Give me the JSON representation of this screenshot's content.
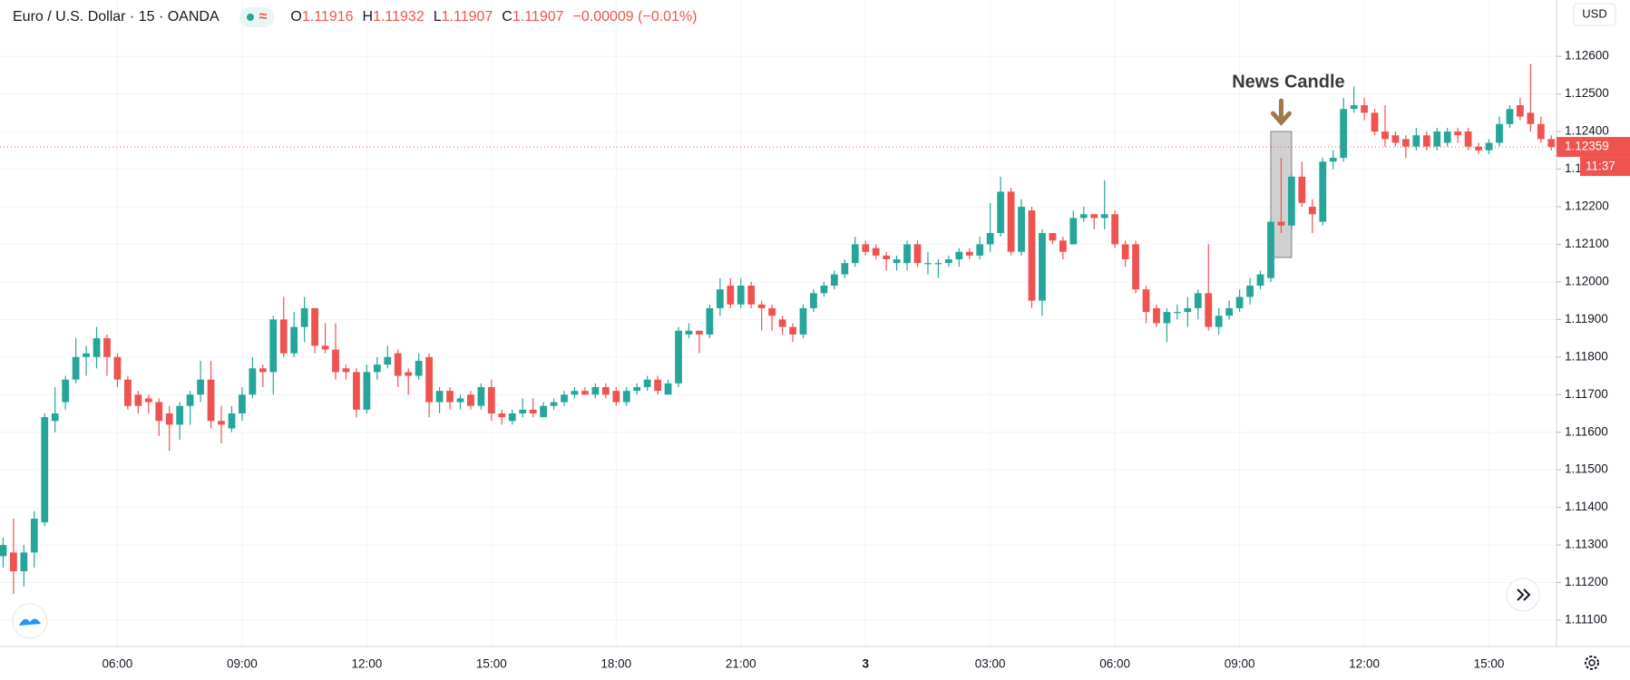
{
  "header": {
    "title": "Euro / U.S. Dollar · 15 · OANDA",
    "ohlc": [
      {
        "label": "O",
        "value": "1.11916"
      },
      {
        "label": "H",
        "value": "1.11932"
      },
      {
        "label": "L",
        "value": "1.11907"
      },
      {
        "label": "C",
        "value": "1.11907"
      }
    ],
    "change": "−0.00009 (−0.01%)"
  },
  "chart_data": {
    "type": "candlestick",
    "up_color": "#26a69a",
    "down_color": "#ef5350",
    "grid": true,
    "currency": "USD",
    "last_price_label": "1.12359",
    "countdown": "11:37",
    "annotations": [
      {
        "text": "News Candle",
        "x": 123
      }
    ],
    "highlight": {
      "x": 123,
      "ylim": [
        1.12065,
        1.124
      ]
    },
    "xlim": [
      -0.3,
      149.5
    ],
    "xticks": [
      {
        "value": 11,
        "label": "06:00"
      },
      {
        "value": 23,
        "label": "09:00"
      },
      {
        "value": 35,
        "label": "12:00"
      },
      {
        "value": 47,
        "label": "15:00"
      },
      {
        "value": 59,
        "label": "18:00"
      },
      {
        "value": 71,
        "label": "21:00"
      },
      {
        "value": 83,
        "label": "3"
      },
      {
        "value": 95,
        "label": "03:00"
      },
      {
        "value": 107,
        "label": "06:00"
      },
      {
        "value": 119,
        "label": "09:00"
      },
      {
        "value": 131,
        "label": "12:00"
      },
      {
        "value": 143,
        "label": "15:00"
      }
    ],
    "ylim": [
      1.1103,
      1.1275
    ],
    "yticks": [
      {
        "value": 1.111,
        "label": "1.11100"
      },
      {
        "value": 1.112,
        "label": "1.11200"
      },
      {
        "value": 1.113,
        "label": "1.11300"
      },
      {
        "value": 1.114,
        "label": "1.11400"
      },
      {
        "value": 1.115,
        "label": "1.11500"
      },
      {
        "value": 1.116,
        "label": "1.11600"
      },
      {
        "value": 1.117,
        "label": "1.11700"
      },
      {
        "value": 1.118,
        "label": "1.11800"
      },
      {
        "value": 1.119,
        "label": "1.11900"
      },
      {
        "value": 1.12,
        "label": "1.12000"
      },
      {
        "value": 1.121,
        "label": "1.12100"
      },
      {
        "value": 1.122,
        "label": "1.12200"
      },
      {
        "value": 1.123,
        "label": "1.12300"
      },
      {
        "value": 1.124,
        "label": "1.12400"
      },
      {
        "value": 1.125,
        "label": "1.12500"
      },
      {
        "value": 1.126,
        "label": "1.12600"
      }
    ],
    "open": [
      1.1127,
      1.1128,
      1.1123,
      1.1128,
      1.1136,
      1.1163,
      1.1168,
      1.1174,
      1.118,
      1.118,
      1.1185,
      1.118,
      1.1174,
      1.117,
      1.1169,
      1.1168,
      1.1165,
      1.1162,
      1.1167,
      1.117,
      1.1174,
      1.1163,
      1.1161,
      1.1165,
      1.117,
      1.1177,
      1.1176,
      1.119,
      1.1181,
      1.1188,
      1.1193,
      1.1183,
      1.1182,
      1.1177,
      1.1176,
      1.1166,
      1.1176,
      1.1178,
      1.1181,
      1.1176,
      1.1175,
      1.118,
      1.1168,
      1.1171,
      1.1168,
      1.117,
      1.1167,
      1.1172,
      1.1165,
      1.1163,
      1.1165,
      1.1166,
      1.1164,
      1.1167,
      1.1168,
      1.117,
      1.1171,
      1.117,
      1.1172,
      1.1171,
      1.1168,
      1.1171,
      1.1172,
      1.1174,
      1.117,
      1.1173,
      1.1186,
      1.1187,
      1.1186,
      1.1193,
      1.1199,
      1.1194,
      1.1199,
      1.1194,
      1.1193,
      1.119,
      1.1188,
      1.1186,
      1.1193,
      1.1197,
      1.1199,
      1.1202,
      1.1205,
      1.121,
      1.1209,
      1.1207,
      1.1205,
      1.1205,
      1.121,
      1.1205,
      1.1205,
      1.1205,
      1.1206,
      1.1208,
      1.1207,
      1.121,
      1.1213,
      1.1224,
      1.1208,
      1.1219,
      1.1195,
      1.1213,
      1.1211,
      1.121,
      1.1217,
      1.1218,
      1.1217,
      1.1218,
      1.121,
      1.121,
      1.1198,
      1.1193,
      1.1189,
      1.1192,
      1.1192,
      1.1193,
      1.1197,
      1.1188,
      1.1191,
      1.1193,
      1.1196,
      1.1199,
      1.1201,
      1.1216,
      1.1215,
      1.1228,
      1.122,
      1.1216,
      1.1232,
      1.1233,
      1.1246,
      1.1247,
      1.1245,
      1.124,
      1.1239,
      1.1238,
      1.1236,
      1.1239,
      1.1236,
      1.1237,
      1.124,
      1.124,
      1.1236,
      1.1235,
      1.1237,
      1.1242,
      1.1247,
      1.1245,
      1.1242,
      1.1238
    ],
    "high": [
      1.1132,
      1.1137,
      1.113,
      1.1139,
      1.1165,
      1.1172,
      1.1175,
      1.1185,
      1.1183,
      1.1188,
      1.1186,
      1.1181,
      1.1175,
      1.1171,
      1.117,
      1.1169,
      1.1167,
      1.1168,
      1.1171,
      1.1179,
      1.1179,
      1.1167,
      1.1167,
      1.1172,
      1.118,
      1.1178,
      1.1191,
      1.1196,
      1.1192,
      1.1196,
      1.1193,
      1.1189,
      1.1189,
      1.1178,
      1.1177,
      1.1178,
      1.118,
      1.1183,
      1.1182,
      1.1177,
      1.1181,
      1.1181,
      1.1172,
      1.1172,
      1.117,
      1.1171,
      1.1173,
      1.1174,
      1.1166,
      1.1166,
      1.1169,
      1.1169,
      1.1168,
      1.1169,
      1.1171,
      1.1172,
      1.1172,
      1.1173,
      1.1173,
      1.1172,
      1.1172,
      1.1173,
      1.1175,
      1.1175,
      1.1174,
      1.1188,
      1.1189,
      1.1187,
      1.1194,
      1.1201,
      1.1201,
      1.1201,
      1.12,
      1.1195,
      1.1194,
      1.1191,
      1.1189,
      1.1194,
      1.1198,
      1.12,
      1.1203,
      1.1206,
      1.1212,
      1.1211,
      1.121,
      1.1208,
      1.1207,
      1.1211,
      1.1211,
      1.1208,
      1.1206,
      1.1207,
      1.1209,
      1.1209,
      1.1212,
      1.1221,
      1.1228,
      1.1225,
      1.1222,
      1.122,
      1.1214,
      1.1213,
      1.1212,
      1.1219,
      1.122,
      1.1218,
      1.1227,
      1.1219,
      1.1211,
      1.1211,
      1.1199,
      1.1194,
      1.1193,
      1.1194,
      1.1196,
      1.1198,
      1.121,
      1.1193,
      1.1195,
      1.1198,
      1.1201,
      1.1203,
      1.1217,
      1.1233,
      1.1229,
      1.1232,
      1.1222,
      1.1233,
      1.1235,
      1.1249,
      1.1252,
      1.1249,
      1.1246,
      1.1247,
      1.124,
      1.1239,
      1.1241,
      1.124,
      1.1241,
      1.1241,
      1.1241,
      1.1241,
      1.1237,
      1.1238,
      1.1244,
      1.1247,
      1.1249,
      1.1258,
      1.1244,
      1.1239
    ],
    "low": [
      1.1124,
      1.1117,
      1.1119,
      1.1124,
      1.1135,
      1.116,
      1.1166,
      1.1173,
      1.1175,
      1.1177,
      1.1175,
      1.1172,
      1.1166,
      1.1165,
      1.1165,
      1.1159,
      1.1155,
      1.1158,
      1.1162,
      1.1168,
      1.1161,
      1.1157,
      1.116,
      1.1163,
      1.1169,
      1.1172,
      1.117,
      1.118,
      1.118,
      1.1184,
      1.1181,
      1.1181,
      1.1174,
      1.1174,
      1.1164,
      1.1165,
      1.1174,
      1.1177,
      1.1172,
      1.117,
      1.1174,
      1.1164,
      1.1165,
      1.1166,
      1.1166,
      1.1166,
      1.1166,
      1.1163,
      1.1162,
      1.1162,
      1.1164,
      1.1164,
      1.1164,
      1.1166,
      1.1167,
      1.1169,
      1.117,
      1.1169,
      1.1169,
      1.1167,
      1.1167,
      1.117,
      1.1171,
      1.117,
      1.117,
      1.1172,
      1.1185,
      1.1181,
      1.1185,
      1.1191,
      1.1193,
      1.1193,
      1.1193,
      1.1187,
      1.1187,
      1.1186,
      1.1184,
      1.1185,
      1.1192,
      1.1196,
      1.1198,
      1.1201,
      1.1204,
      1.1207,
      1.1206,
      1.1203,
      1.1203,
      1.1203,
      1.1204,
      1.1202,
      1.1201,
      1.1204,
      1.1204,
      1.1206,
      1.1206,
      1.1208,
      1.1212,
      1.1207,
      1.1207,
      1.1193,
      1.1191,
      1.121,
      1.1206,
      1.121,
      1.1216,
      1.1214,
      1.1214,
      1.1209,
      1.1204,
      1.1197,
      1.1189,
      1.1188,
      1.1184,
      1.119,
      1.1188,
      1.119,
      1.1187,
      1.1186,
      1.119,
      1.1192,
      1.1194,
      1.1198,
      1.12,
      1.1213,
      1.1214,
      1.122,
      1.1213,
      1.1215,
      1.123,
      1.1232,
      1.1245,
      1.1243,
      1.1239,
      1.1236,
      1.1236,
      1.1233,
      1.1235,
      1.1235,
      1.1235,
      1.1236,
      1.1237,
      1.1235,
      1.1234,
      1.1234,
      1.1236,
      1.1241,
      1.1243,
      1.124,
      1.1237,
      1.1235
    ],
    "close": [
      1.113,
      1.1123,
      1.1128,
      1.1137,
      1.1164,
      1.1165,
      1.1174,
      1.118,
      1.1181,
      1.1185,
      1.118,
      1.1174,
      1.1167,
      1.1167,
      1.1168,
      1.1163,
      1.1162,
      1.1167,
      1.117,
      1.1174,
      1.1163,
      1.1162,
      1.1165,
      1.117,
      1.1177,
      1.1176,
      1.119,
      1.1181,
      1.1188,
      1.1193,
      1.1183,
      1.1182,
      1.1176,
      1.1176,
      1.1166,
      1.1176,
      1.1178,
      1.118,
      1.1175,
      1.1175,
      1.1179,
      1.1168,
      1.1171,
      1.1168,
      1.1169,
      1.1167,
      1.1172,
      1.1165,
      1.1164,
      1.1165,
      1.1166,
      1.1165,
      1.1167,
      1.1168,
      1.117,
      1.1171,
      1.117,
      1.1172,
      1.117,
      1.1168,
      1.1171,
      1.1172,
      1.1174,
      1.1171,
      1.1173,
      1.1187,
      1.1187,
      1.1186,
      1.1193,
      1.1198,
      1.1194,
      1.1199,
      1.1194,
      1.1193,
      1.1191,
      1.1188,
      1.1186,
      1.1193,
      1.1197,
      1.1199,
      1.1202,
      1.1205,
      1.121,
      1.1208,
      1.1207,
      1.1206,
      1.1206,
      1.121,
      1.1205,
      1.1205,
      1.1205,
      1.1206,
      1.1208,
      1.1207,
      1.121,
      1.1213,
      1.1224,
      1.1208,
      1.122,
      1.1195,
      1.1213,
      1.1211,
      1.1208,
      1.1217,
      1.1218,
      1.1217,
      1.1218,
      1.121,
      1.1206,
      1.1198,
      1.1192,
      1.1189,
      1.1192,
      1.1192,
      1.1193,
      1.1197,
      1.1188,
      1.1191,
      1.1193,
      1.1196,
      1.1199,
      1.1202,
      1.1216,
      1.1215,
      1.1228,
      1.1221,
      1.1218,
      1.1232,
      1.1233,
      1.1246,
      1.1247,
      1.1245,
      1.124,
      1.1238,
      1.1237,
      1.1236,
      1.1239,
      1.1236,
      1.124,
      1.124,
      1.1239,
      1.1236,
      1.1235,
      1.1237,
      1.1242,
      1.1246,
      1.1244,
      1.1242,
      1.1238,
      1.12359
    ]
  }
}
